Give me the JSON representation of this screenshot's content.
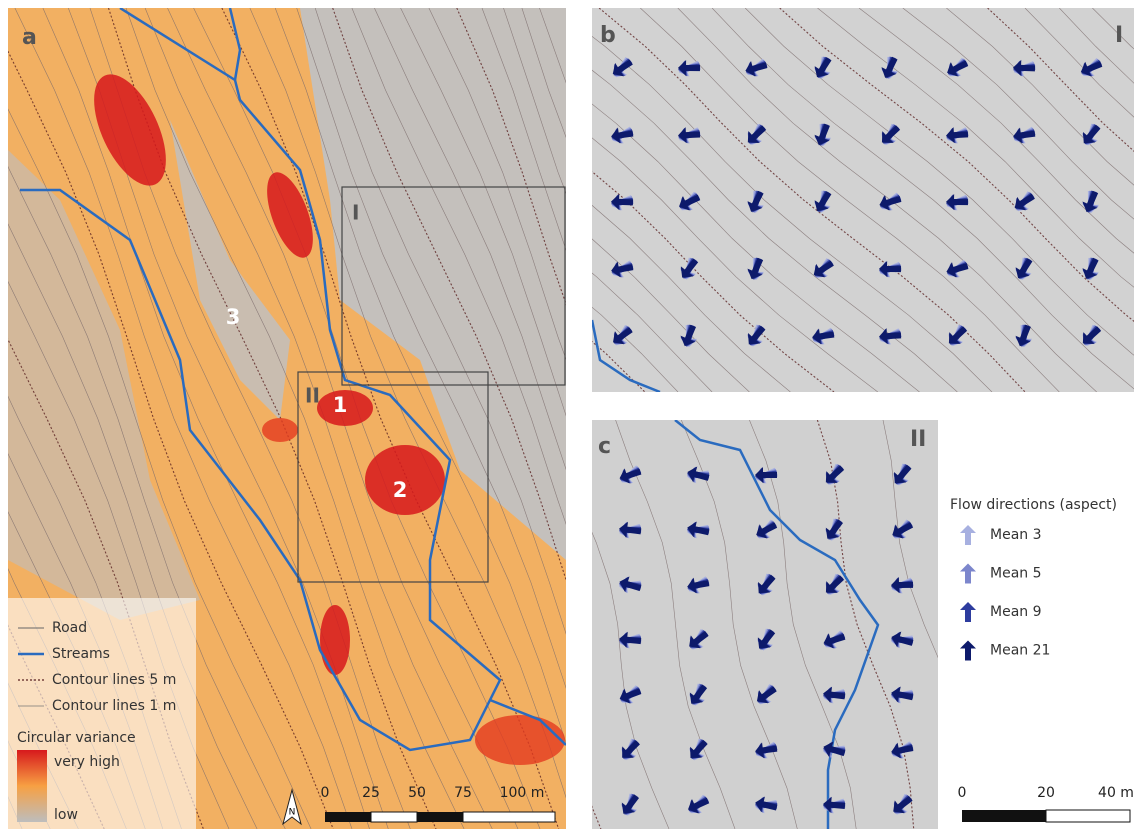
{
  "panels": {
    "a": "a",
    "b": "b",
    "c": "c"
  },
  "boxes": {
    "I": "I",
    "II": "II",
    "panel_b_id": "I",
    "panel_c_id": "II"
  },
  "sites": [
    "1",
    "2",
    "3"
  ],
  "legend_a": {
    "road": "Road",
    "streams": "Streams",
    "contour5": "Contour lines 5 m",
    "contour1": "Contour lines 1 m",
    "variance_title": "Circular variance",
    "high": "very high",
    "low": "low"
  },
  "north": "N",
  "scale_a": [
    "0",
    "25",
    "50",
    "75",
    "100 m"
  ],
  "legend_flow": {
    "title": "Flow directions (aspect)",
    "items": [
      "Mean 3",
      "Mean 5",
      "Mean 9",
      "Mean 21"
    ]
  },
  "scale_bc": [
    "0",
    "20",
    "40 m"
  ]
}
